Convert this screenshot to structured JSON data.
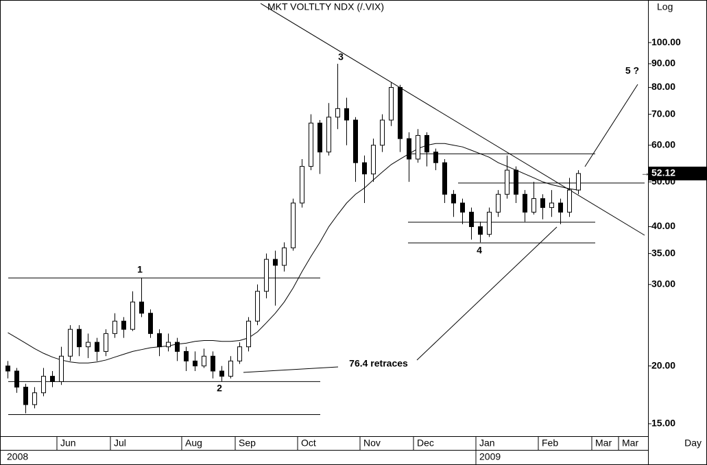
{
  "chart_data": {
    "type": "candlestick",
    "title": "MKT  VOLTLTY  NDX  (/.VIX)",
    "scale_label": "Log",
    "period_label": "Day",
    "log_scale": true,
    "ylim": [
      14.1,
      123.6
    ],
    "yticks": [
      {
        "value": 15,
        "label": "15.00"
      },
      {
        "value": 20,
        "label": "20.00"
      },
      {
        "value": 30,
        "label": "30.00"
      },
      {
        "value": 35,
        "label": "35.00"
      },
      {
        "value": 40,
        "label": "40.00"
      },
      {
        "value": 50,
        "label": "50.00"
      },
      {
        "value": 60,
        "label": "60.00"
      },
      {
        "value": 70,
        "label": "70.00"
      },
      {
        "value": 80,
        "label": "80.00"
      },
      {
        "value": 90,
        "label": "90.00"
      },
      {
        "value": 100,
        "label": "100.00"
      }
    ],
    "categories": [
      null,
      null,
      null,
      null,
      null,
      null,
      "Jun",
      null,
      null,
      null,
      null,
      null,
      "Jul",
      null,
      null,
      null,
      null,
      null,
      null,
      null,
      "Aug",
      null,
      null,
      null,
      null,
      null,
      "Sep",
      null,
      null,
      null,
      null,
      null,
      null,
      "Oct",
      null,
      null,
      null,
      null,
      null,
      null,
      "Nov",
      null,
      null,
      null,
      null,
      null,
      "Dec",
      null,
      null,
      null,
      null,
      null,
      null,
      "Jan",
      null,
      null,
      null,
      null,
      null,
      null,
      "Feb",
      null,
      null,
      null,
      null,
      null,
      "Mar",
      null,
      null,
      "Mar",
      null,
      null
    ],
    "year_categories": [
      "2008",
      null,
      null,
      null,
      null,
      null,
      null,
      null,
      null,
      null,
      null,
      null,
      null,
      null,
      null,
      null,
      null,
      null,
      null,
      null,
      null,
      null,
      null,
      null,
      null,
      null,
      null,
      null,
      null,
      null,
      null,
      null,
      null,
      null,
      null,
      null,
      null,
      null,
      null,
      null,
      null,
      null,
      null,
      null,
      null,
      null,
      null,
      null,
      null,
      null,
      null,
      null,
      null,
      "2009",
      null,
      null,
      null,
      null,
      null,
      null,
      null,
      null,
      null,
      null,
      null,
      null,
      null,
      null,
      null,
      null,
      null,
      null
    ],
    "up_color": "#ffffff",
    "down_color": "#000000",
    "series": [
      {
        "open": [
          20,
          19.5,
          18,
          16.5,
          17.5,
          19,
          18.5,
          21,
          24,
          22,
          22.5,
          21.5,
          23.5,
          25,
          24,
          27.5,
          26,
          23.5,
          22,
          22.5,
          21.5,
          20.5,
          20,
          21,
          19.5,
          19,
          20.5,
          22,
          25,
          29,
          34,
          33,
          36,
          45,
          54,
          67,
          58,
          69,
          72,
          68,
          55,
          52,
          60,
          68,
          80,
          62,
          56,
          63,
          58,
          55,
          47,
          45,
          43,
          40,
          38.5,
          43,
          47,
          53,
          47,
          43,
          46,
          44,
          45,
          43,
          48,
          null,
          null,
          null,
          null,
          null,
          null,
          null
        ],
        "high": [
          20.5,
          19.8,
          18.3,
          18,
          19.8,
          19.5,
          22,
          24.5,
          24.5,
          23.5,
          23,
          24,
          26,
          25.5,
          29,
          31,
          26.5,
          24,
          23.5,
          23,
          22,
          21.5,
          21.8,
          21.5,
          20,
          21,
          22.5,
          25.5,
          30,
          35,
          35.5,
          37,
          46,
          56,
          70,
          68,
          74,
          90,
          76,
          69,
          57,
          62,
          70,
          82,
          81,
          64,
          65,
          64,
          59,
          56,
          48,
          46,
          44,
          41,
          44,
          48,
          57,
          54,
          48,
          50,
          47,
          48,
          46,
          51,
          53,
          null,
          null,
          null,
          null,
          null,
          null,
          null
        ],
        "low": [
          18.8,
          17.5,
          15.8,
          16.2,
          17.2,
          18,
          18.2,
          20.5,
          21,
          20.8,
          20.5,
          21,
          23,
          23,
          23.8,
          25.5,
          23,
          21,
          21.5,
          20.5,
          19.5,
          19.5,
          19.8,
          18.8,
          18.5,
          18.8,
          20.2,
          21.5,
          24.5,
          28,
          27,
          32,
          35.5,
          44,
          53,
          52,
          57,
          65,
          60,
          50,
          45,
          50,
          58,
          66,
          58,
          50,
          55,
          54,
          53,
          45,
          42,
          40.5,
          37.5,
          37,
          38,
          42,
          46,
          45,
          41,
          42.5,
          41.5,
          42,
          40.5,
          42,
          47,
          null,
          null,
          null,
          null,
          null,
          null,
          null
        ],
        "close": [
          19.5,
          18,
          16.5,
          17.5,
          19,
          18.5,
          21,
          24,
          22,
          22.5,
          21.5,
          23.5,
          25,
          24,
          27.5,
          26,
          23.5,
          22,
          22.5,
          21.5,
          20.5,
          20,
          21,
          19.5,
          19,
          20.5,
          22,
          25,
          29,
          34,
          33,
          36,
          45,
          54,
          67,
          58,
          69,
          72,
          68,
          55,
          52,
          60,
          68,
          80,
          62,
          56,
          63,
          58,
          55,
          47,
          45,
          43,
          40,
          38.5,
          43,
          47,
          53,
          47,
          43,
          46,
          44,
          45,
          43,
          48,
          52.12,
          null,
          null,
          null,
          null,
          null,
          null,
          null
        ]
      }
    ],
    "moving_average": [
      23.6,
      23,
      22.4,
      21.8,
      21.3,
      20.9,
      20.6,
      20.4,
      20.3,
      20.3,
      20.4,
      20.6,
      20.9,
      21.2,
      21.5,
      21.7,
      21.9,
      22,
      22.1,
      22.3,
      22.4,
      22.6,
      22.7,
      22.7,
      22.6,
      22.6,
      22.7,
      23,
      23.7,
      24.8,
      26,
      27.5,
      29.5,
      32,
      34.5,
      37,
      40,
      42.5,
      45,
      47,
      48.5,
      50.5,
      52.5,
      54.5,
      56,
      57.5,
      59,
      60,
      60.5,
      60.5,
      60,
      59.5,
      58.5,
      57.5,
      56.5,
      55,
      54,
      53,
      52,
      51,
      50,
      49.3,
      48.8,
      48.3,
      48,
      null,
      null,
      null,
      null,
      null,
      null,
      null
    ],
    "levels": [
      31,
      18.5,
      15.7,
      57.5,
      49.7,
      40.9,
      36.9
    ],
    "annotations": [
      "1",
      "2",
      "3",
      "4",
      "5 ?",
      "76.4 retraces"
    ]
  }
}
